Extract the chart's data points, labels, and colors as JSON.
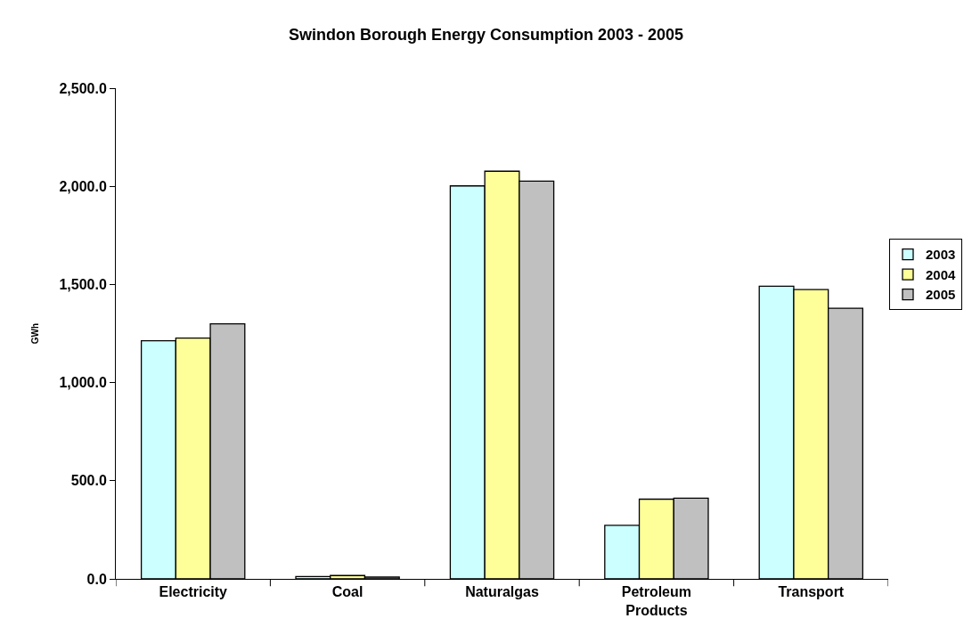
{
  "chart_data": {
    "type": "bar",
    "title": "Swindon Borough Energy Consumption 2003 - 2005",
    "ylabel": "GWh",
    "categories": [
      "Electricity",
      "Coal",
      "Naturalgas",
      "Petroleum Products",
      "Transport"
    ],
    "series": [
      {
        "name": "2003",
        "color": "#ccffff",
        "values": [
          1213,
          12,
          2002,
          273,
          1491
        ]
      },
      {
        "name": "2004",
        "color": "#ffff99",
        "values": [
          1227,
          17,
          2077,
          406,
          1474
        ]
      },
      {
        "name": "2005",
        "color": "#c0c0c0",
        "values": [
          1299,
          9,
          2026,
          411,
          1379
        ]
      }
    ],
    "ylim": [
      0,
      2500
    ],
    "yticks": [
      {
        "value": 0,
        "label": "0.0"
      },
      {
        "value": 500,
        "label": "500.0"
      },
      {
        "value": 1000,
        "label": "1,000.0"
      },
      {
        "value": 1500,
        "label": "1,500.0"
      },
      {
        "value": 2000,
        "label": "2,000.0"
      },
      {
        "value": 2500,
        "label": "2,500.0"
      }
    ],
    "grid": false,
    "legend": "right"
  }
}
